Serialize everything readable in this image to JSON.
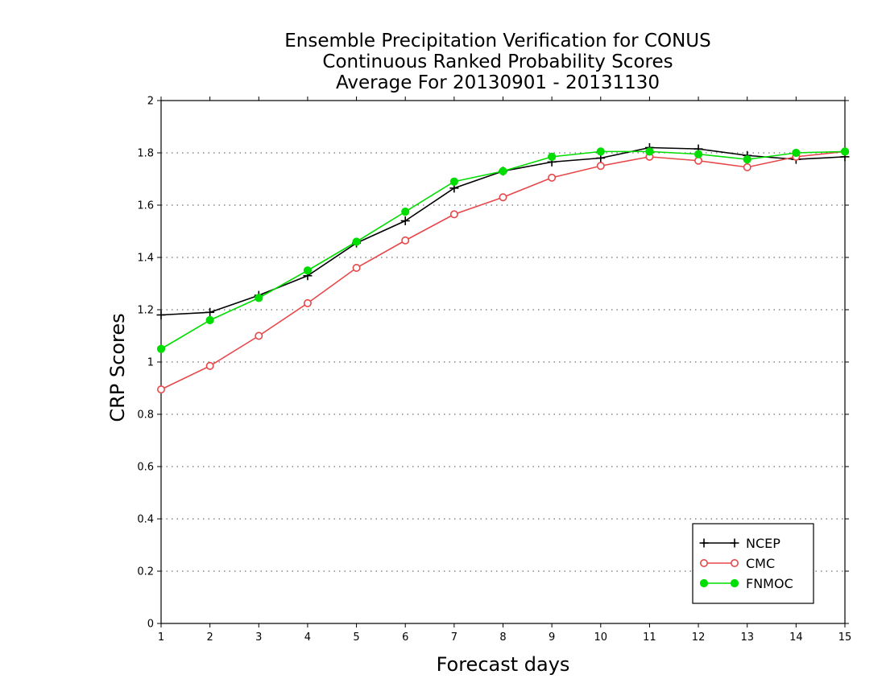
{
  "chart_data": {
    "type": "line",
    "title": [
      "Ensemble Precipitation Verification for CONUS",
      "Continuous Ranked Probability Scores",
      "Average For 20130901 - 20131130"
    ],
    "xlabel": "Forecast days",
    "ylabel": "CRP Scores",
    "xlim": [
      1,
      15
    ],
    "ylim": [
      0,
      2
    ],
    "x": [
      1,
      2,
      3,
      4,
      5,
      6,
      7,
      8,
      9,
      10,
      11,
      12,
      13,
      14,
      15
    ],
    "xticks": [
      "1",
      "2",
      "3",
      "4",
      "5",
      "6",
      "7",
      "8",
      "9",
      "10",
      "11",
      "12",
      "13",
      "14",
      "15"
    ],
    "yticks": [
      "0",
      "0.2",
      "0.4",
      "0.6",
      "0.8",
      "1",
      "1.2",
      "1.4",
      "1.6",
      "1.8",
      "2"
    ],
    "ytick_values": [
      0,
      0.2,
      0.4,
      0.6,
      0.8,
      1.0,
      1.2,
      1.4,
      1.6,
      1.8,
      2.0
    ],
    "grid": "horizontal dotted",
    "legend_position": "bottom-right",
    "series": [
      {
        "name": "NCEP",
        "color": "#000000",
        "marker": "plus",
        "values": [
          1.18,
          1.19,
          1.255,
          1.33,
          1.455,
          1.54,
          1.665,
          1.73,
          1.765,
          1.78,
          1.82,
          1.815,
          1.79,
          1.775,
          1.785
        ]
      },
      {
        "name": "CMC",
        "color": "#e8474a",
        "marker": "open-circle",
        "values": [
          0.895,
          0.985,
          1.1,
          1.225,
          1.36,
          1.465,
          1.565,
          1.63,
          1.705,
          1.75,
          1.785,
          1.77,
          1.745,
          1.785,
          1.805
        ]
      },
      {
        "name": "FNMOC",
        "color": "#00dd00",
        "marker": "filled-circle",
        "values": [
          1.05,
          1.16,
          1.245,
          1.35,
          1.46,
          1.575,
          1.69,
          1.73,
          1.785,
          1.805,
          1.805,
          1.795,
          1.775,
          1.8,
          1.805
        ]
      }
    ]
  }
}
